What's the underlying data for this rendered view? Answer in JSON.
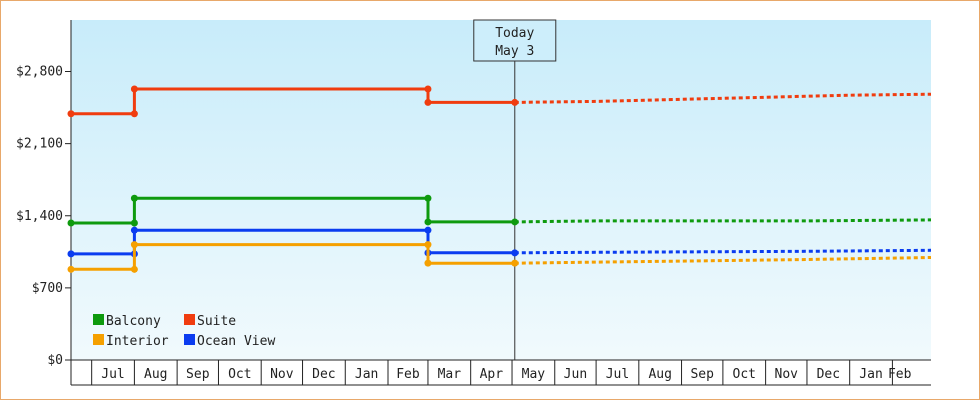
{
  "chart_data": {
    "type": "line",
    "step": true,
    "y_axis": {
      "min": 0,
      "max": 3300,
      "ticks": [
        {
          "value": 0,
          "label": "$0"
        },
        {
          "value": 700,
          "label": "$700"
        },
        {
          "value": 1400,
          "label": "$1,400"
        },
        {
          "value": 2100,
          "label": "$2,100"
        },
        {
          "value": 2800,
          "label": "$2,800"
        }
      ]
    },
    "x_axis": {
      "start": "2023-06-16",
      "end": "2025-03-01",
      "months": [
        {
          "label": "Jul",
          "date": "2023-07-01"
        },
        {
          "label": "Aug",
          "date": "2023-08-01"
        },
        {
          "label": "Sep",
          "date": "2023-09-01"
        },
        {
          "label": "Oct",
          "date": "2023-10-01"
        },
        {
          "label": "Nov",
          "date": "2023-11-01"
        },
        {
          "label": "Dec",
          "date": "2023-12-01"
        },
        {
          "label": "Jan",
          "date": "2024-01-01"
        },
        {
          "label": "Feb",
          "date": "2024-02-01"
        },
        {
          "label": "Mar",
          "date": "2024-03-01"
        },
        {
          "label": "Apr",
          "date": "2024-04-01"
        },
        {
          "label": "May",
          "date": "2024-05-01"
        },
        {
          "label": "Jun",
          "date": "2024-06-01"
        },
        {
          "label": "Jul",
          "date": "2024-07-01"
        },
        {
          "label": "Aug",
          "date": "2024-08-01"
        },
        {
          "label": "Sep",
          "date": "2024-09-01"
        },
        {
          "label": "Oct",
          "date": "2024-10-01"
        },
        {
          "label": "Nov",
          "date": "2024-11-01"
        },
        {
          "label": "Dec",
          "date": "2024-12-01"
        },
        {
          "label": "Jan",
          "date": "2025-01-01"
        },
        {
          "label": "Feb",
          "date": "2025-02-01"
        }
      ]
    },
    "today": {
      "line1": "Today",
      "line2": "May 3",
      "date": "2024-05-03"
    },
    "series": [
      {
        "name": "Suite",
        "color": "#f03c0f",
        "history": [
          {
            "date": "2023-06-16",
            "y": 2390
          },
          {
            "date": "2023-08-01",
            "y": 2390
          },
          {
            "date": "2023-08-01",
            "y": 2630
          },
          {
            "date": "2024-03-01",
            "y": 2630
          },
          {
            "date": "2024-03-01",
            "y": 2500
          },
          {
            "date": "2024-05-03",
            "y": 2500
          }
        ],
        "forecast": [
          {
            "date": "2024-05-03",
            "y": 2500
          },
          {
            "date": "2024-07-01",
            "y": 2510
          },
          {
            "date": "2024-08-01",
            "y": 2520
          },
          {
            "date": "2024-09-01",
            "y": 2530
          },
          {
            "date": "2024-10-01",
            "y": 2540
          },
          {
            "date": "2024-11-01",
            "y": 2550
          },
          {
            "date": "2024-12-01",
            "y": 2560
          },
          {
            "date": "2025-01-01",
            "y": 2570
          },
          {
            "date": "2025-03-01",
            "y": 2580
          }
        ]
      },
      {
        "name": "Balcony",
        "color": "#0e9a0e",
        "history": [
          {
            "date": "2023-06-16",
            "y": 1330
          },
          {
            "date": "2023-08-01",
            "y": 1330
          },
          {
            "date": "2023-08-01",
            "y": 1570
          },
          {
            "date": "2024-03-01",
            "y": 1570
          },
          {
            "date": "2024-03-01",
            "y": 1340
          },
          {
            "date": "2024-05-03",
            "y": 1340
          }
        ],
        "forecast": [
          {
            "date": "2024-05-03",
            "y": 1340
          },
          {
            "date": "2024-07-01",
            "y": 1350
          },
          {
            "date": "2024-12-01",
            "y": 1350
          },
          {
            "date": "2025-03-01",
            "y": 1360
          }
        ]
      },
      {
        "name": "Ocean View",
        "color": "#0a3cf0",
        "history": [
          {
            "date": "2023-06-16",
            "y": 1030
          },
          {
            "date": "2023-08-01",
            "y": 1030
          },
          {
            "date": "2023-08-01",
            "y": 1260
          },
          {
            "date": "2024-03-01",
            "y": 1260
          },
          {
            "date": "2024-03-01",
            "y": 1040
          },
          {
            "date": "2024-05-03",
            "y": 1040
          }
        ],
        "forecast": [
          {
            "date": "2024-05-03",
            "y": 1040
          },
          {
            "date": "2024-07-01",
            "y": 1045
          },
          {
            "date": "2024-12-01",
            "y": 1055
          },
          {
            "date": "2025-03-01",
            "y": 1065
          }
        ]
      },
      {
        "name": "Interior",
        "color": "#f5a000",
        "history": [
          {
            "date": "2023-06-16",
            "y": 880
          },
          {
            "date": "2023-08-01",
            "y": 880
          },
          {
            "date": "2023-08-01",
            "y": 1120
          },
          {
            "date": "2024-03-01",
            "y": 1120
          },
          {
            "date": "2024-03-01",
            "y": 940
          },
          {
            "date": "2024-05-03",
            "y": 940
          }
        ],
        "forecast": [
          {
            "date": "2024-05-03",
            "y": 940
          },
          {
            "date": "2024-07-01",
            "y": 950
          },
          {
            "date": "2024-09-01",
            "y": 960
          },
          {
            "date": "2024-12-01",
            "y": 975
          },
          {
            "date": "2025-03-01",
            "y": 995
          }
        ]
      }
    ],
    "legend": {
      "placement": "bottom-left",
      "order": [
        "Balcony",
        "Suite",
        "Interior",
        "Ocean View"
      ]
    },
    "background": {
      "top": "#c8ecfa",
      "bottom": "#f1fafd"
    }
  }
}
